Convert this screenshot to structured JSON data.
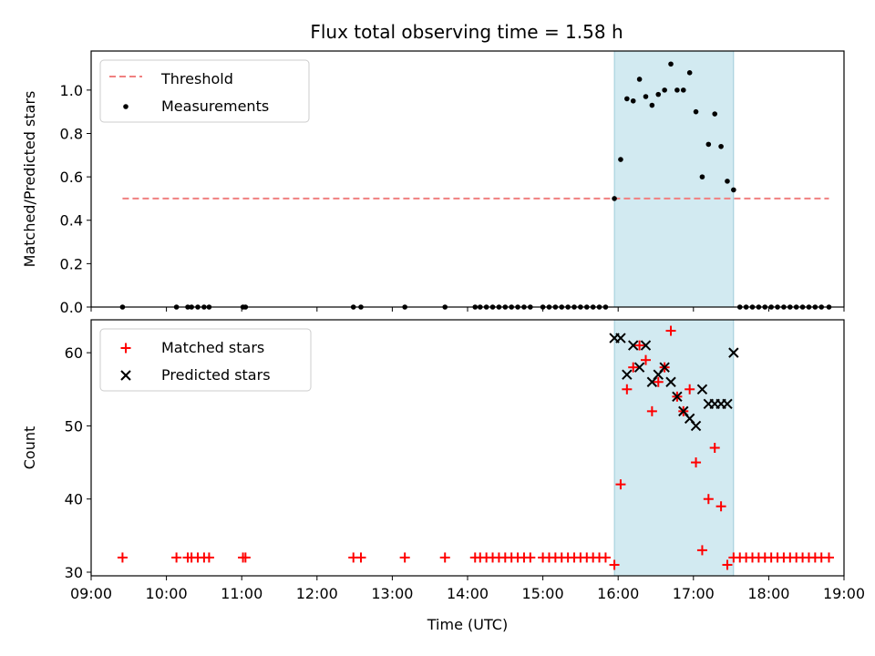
{
  "title": "Flux total observing time = 1.58 h",
  "colors": {
    "threshold": "#f08080",
    "measurements": "#000000",
    "matched": "#ff0000",
    "predicted": "#000000",
    "shade": "#add8e6"
  },
  "chart_data": [
    {
      "type": "scatter",
      "ylabel": "Matched/Predicted stars",
      "xlabel": "",
      "xlim": [
        "09:00",
        "19:00"
      ],
      "ylim": [
        0.0,
        1.18
      ],
      "yticks": [
        "0.0",
        "0.2",
        "0.4",
        "0.6",
        "0.8",
        "1.0"
      ],
      "ytick_values": [
        0.0,
        0.2,
        0.4,
        0.6,
        0.8,
        1.0
      ],
      "shaded_interval": [
        "15:57",
        "17:32"
      ],
      "legend_position": "top-left",
      "threshold": {
        "name": "Threshold",
        "value": 0.5,
        "x_range": [
          "09:25",
          "18:48"
        ]
      },
      "series": [
        {
          "name": "Measurements",
          "marker": "dot",
          "points": [
            [
              "09:25",
              0.0
            ],
            [
              "10:08",
              0.0
            ],
            [
              "10:17",
              0.0
            ],
            [
              "10:20",
              0.0
            ],
            [
              "10:25",
              0.0
            ],
            [
              "10:30",
              0.0
            ],
            [
              "10:34",
              0.0
            ],
            [
              "11:01",
              0.0
            ],
            [
              "11:03",
              0.0
            ],
            [
              "12:29",
              0.0
            ],
            [
              "12:35",
              0.0
            ],
            [
              "13:10",
              0.0
            ],
            [
              "13:42",
              0.0
            ],
            [
              "14:06",
              0.0
            ],
            [
              "14:10",
              0.0
            ],
            [
              "14:15",
              0.0
            ],
            [
              "14:20",
              0.0
            ],
            [
              "14:25",
              0.0
            ],
            [
              "14:30",
              0.0
            ],
            [
              "14:35",
              0.0
            ],
            [
              "14:40",
              0.0
            ],
            [
              "14:45",
              0.0
            ],
            [
              "14:50",
              0.0
            ],
            [
              "15:00",
              0.0
            ],
            [
              "15:05",
              0.0
            ],
            [
              "15:10",
              0.0
            ],
            [
              "15:15",
              0.0
            ],
            [
              "15:20",
              0.0
            ],
            [
              "15:25",
              0.0
            ],
            [
              "15:30",
              0.0
            ],
            [
              "15:35",
              0.0
            ],
            [
              "15:40",
              0.0
            ],
            [
              "15:45",
              0.0
            ],
            [
              "15:50",
              0.0
            ],
            [
              "15:57",
              0.5
            ],
            [
              "16:02",
              0.68
            ],
            [
              "16:07",
              0.96
            ],
            [
              "16:12",
              0.95
            ],
            [
              "16:17",
              1.05
            ],
            [
              "16:22",
              0.97
            ],
            [
              "16:27",
              0.93
            ],
            [
              "16:32",
              0.98
            ],
            [
              "16:37",
              1.0
            ],
            [
              "16:42",
              1.12
            ],
            [
              "16:47",
              1.0
            ],
            [
              "16:52",
              1.0
            ],
            [
              "16:57",
              1.08
            ],
            [
              "17:02",
              0.9
            ],
            [
              "17:07",
              0.6
            ],
            [
              "17:12",
              0.75
            ],
            [
              "17:17",
              0.89
            ],
            [
              "17:22",
              0.74
            ],
            [
              "17:27",
              0.58
            ],
            [
              "17:32",
              0.54
            ],
            [
              "17:37",
              0.0
            ],
            [
              "17:42",
              0.0
            ],
            [
              "17:47",
              0.0
            ],
            [
              "17:52",
              0.0
            ],
            [
              "17:57",
              0.0
            ],
            [
              "18:02",
              0.0
            ],
            [
              "18:07",
              0.0
            ],
            [
              "18:12",
              0.0
            ],
            [
              "18:17",
              0.0
            ],
            [
              "18:22",
              0.0
            ],
            [
              "18:27",
              0.0
            ],
            [
              "18:32",
              0.0
            ],
            [
              "18:37",
              0.0
            ],
            [
              "18:42",
              0.0
            ],
            [
              "18:48",
              0.0
            ]
          ]
        }
      ]
    },
    {
      "type": "scatter",
      "ylabel": "Count",
      "xlabel": "Time (UTC)",
      "xlim": [
        "09:00",
        "19:00"
      ],
      "ylim": [
        29.5,
        64.5
      ],
      "yticks": [
        "30",
        "40",
        "50",
        "60"
      ],
      "ytick_values": [
        30,
        40,
        50,
        60
      ],
      "xticks": [
        "09:00",
        "10:00",
        "11:00",
        "12:00",
        "13:00",
        "14:00",
        "15:00",
        "16:00",
        "17:00",
        "18:00",
        "19:00"
      ],
      "shaded_interval": [
        "15:57",
        "17:32"
      ],
      "legend_position": "top-left",
      "series": [
        {
          "name": "Matched stars",
          "marker": "plus",
          "points": [
            [
              "09:25",
              32
            ],
            [
              "10:08",
              32
            ],
            [
              "10:17",
              32
            ],
            [
              "10:20",
              32
            ],
            [
              "10:25",
              32
            ],
            [
              "10:30",
              32
            ],
            [
              "10:34",
              32
            ],
            [
              "11:01",
              32
            ],
            [
              "11:03",
              32
            ],
            [
              "12:29",
              32
            ],
            [
              "12:35",
              32
            ],
            [
              "13:10",
              32
            ],
            [
              "13:42",
              32
            ],
            [
              "14:06",
              32
            ],
            [
              "14:10",
              32
            ],
            [
              "14:15",
              32
            ],
            [
              "14:20",
              32
            ],
            [
              "14:25",
              32
            ],
            [
              "14:30",
              32
            ],
            [
              "14:35",
              32
            ],
            [
              "14:40",
              32
            ],
            [
              "14:45",
              32
            ],
            [
              "14:50",
              32
            ],
            [
              "15:00",
              32
            ],
            [
              "15:05",
              32
            ],
            [
              "15:10",
              32
            ],
            [
              "15:15",
              32
            ],
            [
              "15:20",
              32
            ],
            [
              "15:25",
              32
            ],
            [
              "15:30",
              32
            ],
            [
              "15:35",
              32
            ],
            [
              "15:40",
              32
            ],
            [
              "15:45",
              32
            ],
            [
              "15:50",
              32
            ],
            [
              "15:57",
              31
            ],
            [
              "16:02",
              42
            ],
            [
              "16:07",
              55
            ],
            [
              "16:12",
              58
            ],
            [
              "16:17",
              61
            ],
            [
              "16:22",
              59
            ],
            [
              "16:27",
              52
            ],
            [
              "16:32",
              56
            ],
            [
              "16:37",
              58
            ],
            [
              "16:42",
              63
            ],
            [
              "16:47",
              54
            ],
            [
              "16:52",
              52
            ],
            [
              "16:57",
              55
            ],
            [
              "17:02",
              45
            ],
            [
              "17:07",
              33
            ],
            [
              "17:12",
              40
            ],
            [
              "17:17",
              47
            ],
            [
              "17:22",
              39
            ],
            [
              "17:27",
              31
            ],
            [
              "17:32",
              32
            ],
            [
              "17:37",
              32
            ],
            [
              "17:42",
              32
            ],
            [
              "17:47",
              32
            ],
            [
              "17:52",
              32
            ],
            [
              "17:57",
              32
            ],
            [
              "18:02",
              32
            ],
            [
              "18:07",
              32
            ],
            [
              "18:12",
              32
            ],
            [
              "18:17",
              32
            ],
            [
              "18:22",
              32
            ],
            [
              "18:27",
              32
            ],
            [
              "18:32",
              32
            ],
            [
              "18:37",
              32
            ],
            [
              "18:42",
              32
            ],
            [
              "18:48",
              32
            ]
          ]
        },
        {
          "name": "Predicted stars",
          "marker": "x",
          "points": [
            [
              "15:57",
              62
            ],
            [
              "16:02",
              62
            ],
            [
              "16:07",
              57
            ],
            [
              "16:12",
              61
            ],
            [
              "16:17",
              58
            ],
            [
              "16:22",
              61
            ],
            [
              "16:27",
              56
            ],
            [
              "16:32",
              57
            ],
            [
              "16:37",
              58
            ],
            [
              "16:42",
              56
            ],
            [
              "16:47",
              54
            ],
            [
              "16:52",
              52
            ],
            [
              "16:57",
              51
            ],
            [
              "17:02",
              50
            ],
            [
              "17:07",
              55
            ],
            [
              "17:12",
              53
            ],
            [
              "17:17",
              53
            ],
            [
              "17:22",
              53
            ],
            [
              "17:27",
              53
            ],
            [
              "17:32",
              60
            ]
          ]
        }
      ]
    }
  ]
}
